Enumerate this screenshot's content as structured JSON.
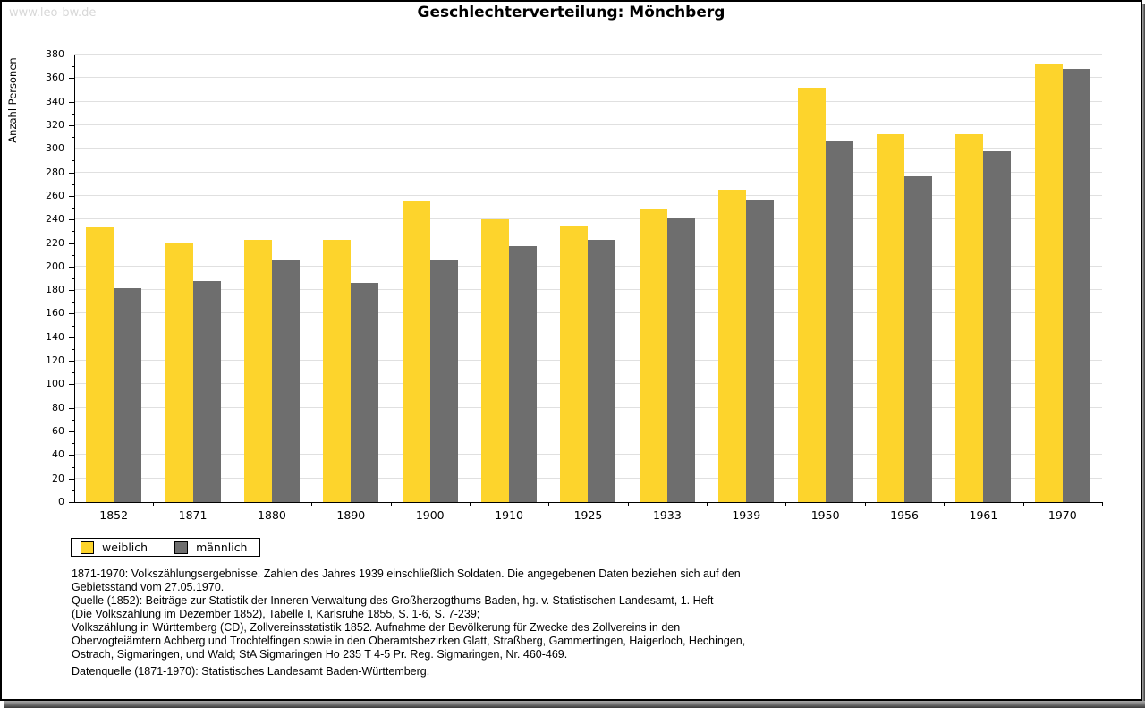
{
  "page": {
    "watermark": "www.leo-bw.de"
  },
  "chart_data": {
    "type": "bar",
    "title": "Geschlechterverteilung: Mönchberg",
    "xlabel": "",
    "ylabel": "Anzahl Personen",
    "categories": [
      "1852",
      "1871",
      "1880",
      "1890",
      "1900",
      "1910",
      "1925",
      "1933",
      "1939",
      "1950",
      "1956",
      "1961",
      "1970"
    ],
    "series": [
      {
        "name": "weiblich",
        "color": "#fdd42c",
        "values": [
          233,
          220,
          223,
          223,
          255,
          240,
          235,
          249,
          265,
          352,
          312,
          312,
          372
        ]
      },
      {
        "name": "männlich",
        "color": "#6e6e6e",
        "values": [
          182,
          188,
          206,
          186,
          206,
          217,
          223,
          242,
          257,
          306,
          277,
          298,
          368
        ]
      }
    ],
    "ylim": [
      0,
      380
    ],
    "ytick_step": 20,
    "ytick_minor_step": 10,
    "grid": true,
    "legend_position": "bottom-left"
  },
  "colors": {
    "female_bar": "#fdd42c",
    "male_bar": "#6e6e6e",
    "gridline": "#e0e0e0",
    "axis": "#000000",
    "watermark": "#d8d8d8"
  },
  "footnotes": {
    "lines": [
      "1871-1970: Volkszählungsergebnisse. Zahlen des Jahres 1939 einschließlich Soldaten. Die angegebenen Daten beziehen sich auf den",
      "Gebietsstand vom 27.05.1970.",
      "Quelle (1852): Beiträge zur Statistik der Inneren Verwaltung des Großherzogthums Baden, hg. v. Statistischen Landesamt, 1. Heft",
      "(Die Volkszählung im Dezember 1852), Tabelle I, Karlsruhe 1855, S. 1-6, S. 7-239;",
      "Volkszählung in Württemberg (CD), Zollvereinsstatistik 1852. Aufnahme der Bevölkerung für Zwecke des Zollvereins in den",
      "Obervogteiämtern Achberg und Trochtelfingen sowie in den Oberamtsbezirken Glatt, Straßberg, Gammertingen, Haigerloch, Hechingen,",
      "Ostrach, Sigmaringen, und Wald; StA Sigmaringen Ho 235 T 4-5 Pr. Reg. Sigmaringen, Nr. 460-469."
    ],
    "source": "Datenquelle (1871-1970): Statistisches Landesamt Baden-Württemberg."
  }
}
